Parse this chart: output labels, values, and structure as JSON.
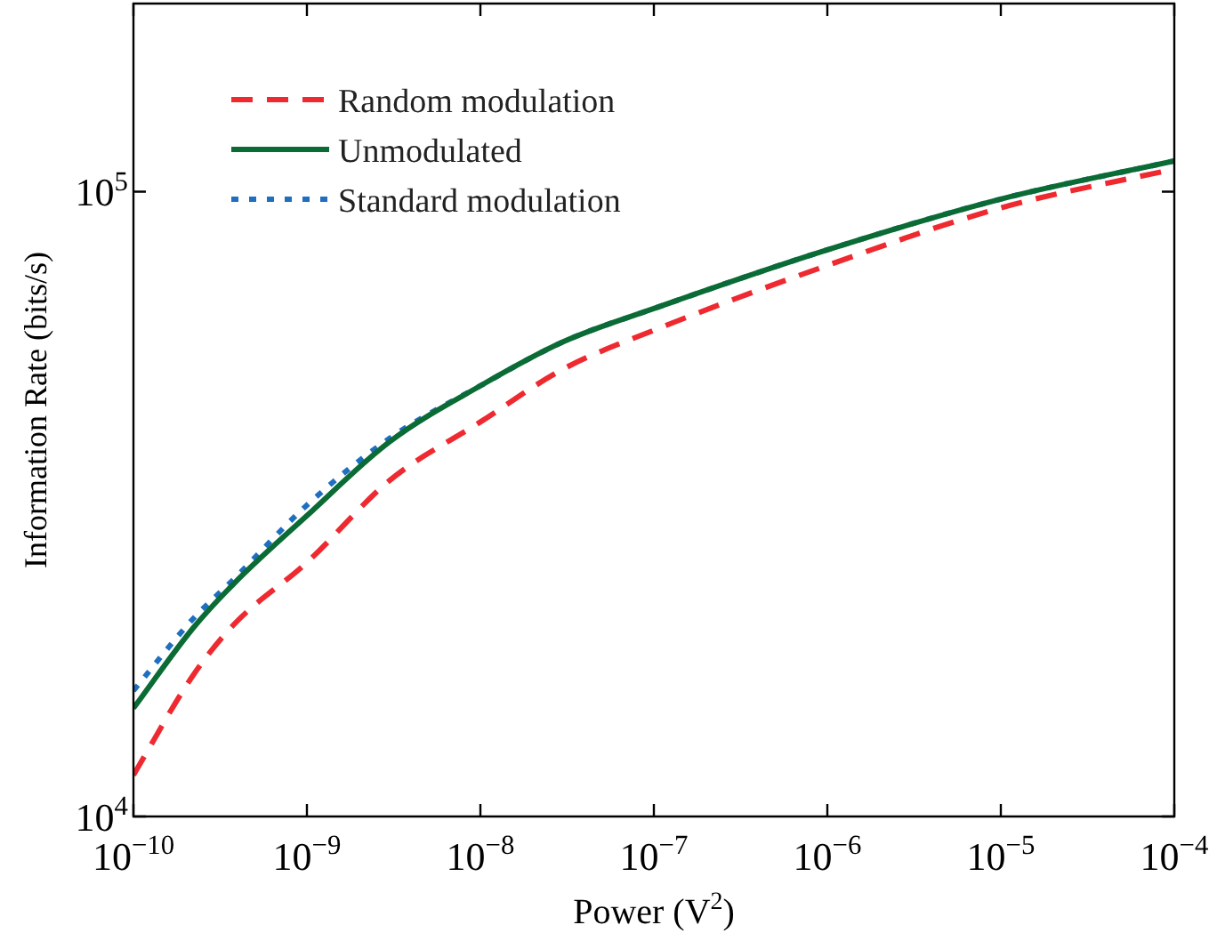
{
  "chart_data": {
    "type": "line",
    "xlabel": "Power (V$^{2}$)",
    "ylabel": "Information Rate (bits/s)",
    "log": "xy",
    "grid": false,
    "legend": "top left",
    "marker": "none",
    "xlim": [
      1e-10,
      0.0001
    ],
    "xticks": [
      {
        "value": 1e-10,
        "label": "10$^{−10}$"
      },
      {
        "value": 1e-09,
        "label": "10$^{−9}$"
      },
      {
        "value": 1e-08,
        "label": "10$^{−8}$"
      },
      {
        "value": 1e-07,
        "label": "10$^{−7}$"
      },
      {
        "value": 1e-06,
        "label": "10$^{−6}$"
      },
      {
        "value": 1e-05,
        "label": "10$^{−5}$"
      },
      {
        "value": 0.0001,
        "label": "10$^{−4}$"
      }
    ],
    "ylim": [
      10000,
      200000
    ],
    "yticks": [
      {
        "value": 10000,
        "label": "10$^{4}$"
      },
      {
        "value": 100000,
        "label": "10$^{5}$"
      }
    ],
    "series": [
      {
        "name": "Random modulation",
        "color": "#ee2a30",
        "line_style": "dashed",
        "x": [
          1e-10,
          2.2e-10,
          3.8e-10,
          1e-09,
          3e-09,
          1e-08,
          3e-08,
          1e-07,
          1e-06,
          1e-05,
          0.0001
        ],
        "values": [
          11650,
          16800,
          20300,
          25500,
          34500,
          42800,
          52000,
          60000,
          76200,
          94200,
          108700
        ]
      },
      {
        "name": "Unmodulated",
        "color": "#0b6b35",
        "line_style": "solid",
        "x": [
          1e-10,
          2.2e-10,
          3.8e-10,
          1e-09,
          3e-09,
          1e-08,
          3e-08,
          1e-07,
          1e-06,
          1e-05,
          0.0001
        ],
        "values": [
          14900,
          20000,
          23600,
          30300,
          39800,
          48900,
          57500,
          65000,
          80700,
          97300,
          112000
        ]
      },
      {
        "name": "Standard modulation",
        "color": "#1f6fc0",
        "line_style": "dotted",
        "x": [
          1e-10,
          2.2e-10,
          3.8e-10,
          1e-09,
          3e-09,
          1e-08,
          3e-08,
          1e-07,
          1e-06,
          1e-05,
          0.0001
        ],
        "values": [
          15900,
          20700,
          24000,
          31500,
          40300,
          48900,
          57500,
          65000,
          80700,
          97300,
          112000
        ]
      }
    ]
  }
}
